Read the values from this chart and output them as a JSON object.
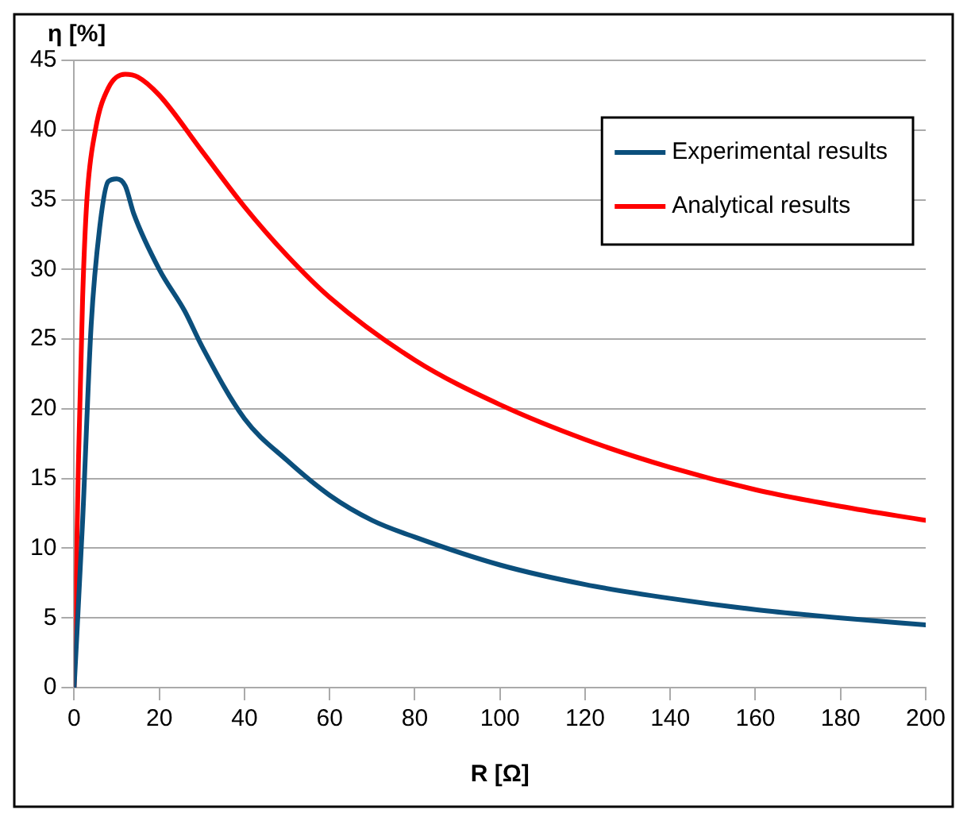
{
  "chart_data": {
    "type": "line",
    "xlabel": "R [Ω]",
    "ylabel": "η [%]",
    "xlim": [
      0,
      200
    ],
    "xticks": [
      0,
      20,
      40,
      60,
      80,
      100,
      120,
      140,
      160,
      180,
      200
    ],
    "ylim": [
      0,
      45
    ],
    "yticks": [
      0,
      5,
      10,
      15,
      20,
      25,
      30,
      35,
      40,
      45
    ],
    "grid": "y",
    "legend": "top right",
    "marker": "none",
    "line_style": "solid",
    "series": [
      {
        "name": "Experimental results",
        "color": "#0b4f7c",
        "x": [
          0,
          2,
          4,
          6,
          8,
          10,
          12,
          14,
          20,
          26,
          30,
          40,
          50,
          60,
          70,
          80,
          100,
          120,
          140,
          160,
          180,
          200
        ],
        "values": [
          0,
          12,
          26,
          33,
          36.3,
          36.5,
          36,
          34,
          30,
          27,
          24.5,
          19.3,
          16.3,
          13.8,
          12,
          10.8,
          8.8,
          7.4,
          6.4,
          5.6,
          5,
          4.5
        ]
      },
      {
        "name": "Analytical results",
        "color": "#ff0000",
        "x": [
          0,
          1,
          2,
          3,
          5,
          8,
          12,
          15,
          20,
          30,
          40,
          50,
          60,
          80,
          100,
          120,
          140,
          160,
          180,
          200
        ],
        "values": [
          0,
          16,
          28,
          35,
          40,
          43,
          44,
          43.8,
          42.5,
          38.5,
          34.5,
          31,
          28,
          23.5,
          20.3,
          17.8,
          15.8,
          14.2,
          13,
          12
        ]
      }
    ]
  }
}
